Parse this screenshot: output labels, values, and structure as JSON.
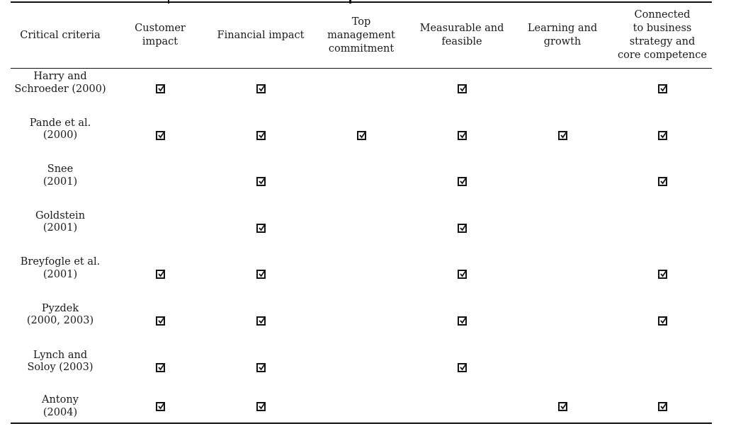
{
  "colors": {
    "text": "#1a1a1a",
    "rule": "#101010",
    "background": "#ffffff"
  },
  "table": {
    "criteria_column_header": "Critical criteria",
    "check_symbol": "☑",
    "columns": [
      {
        "label": "Customer\nimpact"
      },
      {
        "label": "Financial impact"
      },
      {
        "label": "Top\nmanagement\ncommitment"
      },
      {
        "label": "Measurable and\nfeasible"
      },
      {
        "label": "Learning and\ngrowth"
      },
      {
        "label": "Connected\nto business\nstrategy and\ncore competence"
      }
    ],
    "rows": [
      {
        "source": "Harry and\nSchroeder (2000)",
        "checks": [
          true,
          true,
          false,
          true,
          false,
          true
        ]
      },
      {
        "source": "Pande et al.\n(2000)",
        "checks": [
          true,
          true,
          true,
          true,
          true,
          true
        ]
      },
      {
        "source": "Snee\n(2001)",
        "checks": [
          false,
          true,
          false,
          true,
          false,
          true
        ]
      },
      {
        "source": "Goldstein\n(2001)",
        "checks": [
          false,
          true,
          false,
          true,
          false,
          false
        ]
      },
      {
        "source": "Breyfogle et al.\n(2001)",
        "checks": [
          true,
          true,
          false,
          true,
          false,
          true
        ]
      },
      {
        "source": "Pyzdek\n(2000, 2003)",
        "checks": [
          true,
          true,
          false,
          true,
          false,
          true
        ]
      },
      {
        "source": "Lynch and\nSoloy (2003)",
        "checks": [
          true,
          true,
          false,
          true,
          false,
          false
        ]
      },
      {
        "source": "Antony\n(2004)",
        "checks": [
          true,
          true,
          false,
          false,
          true,
          true
        ]
      }
    ]
  }
}
